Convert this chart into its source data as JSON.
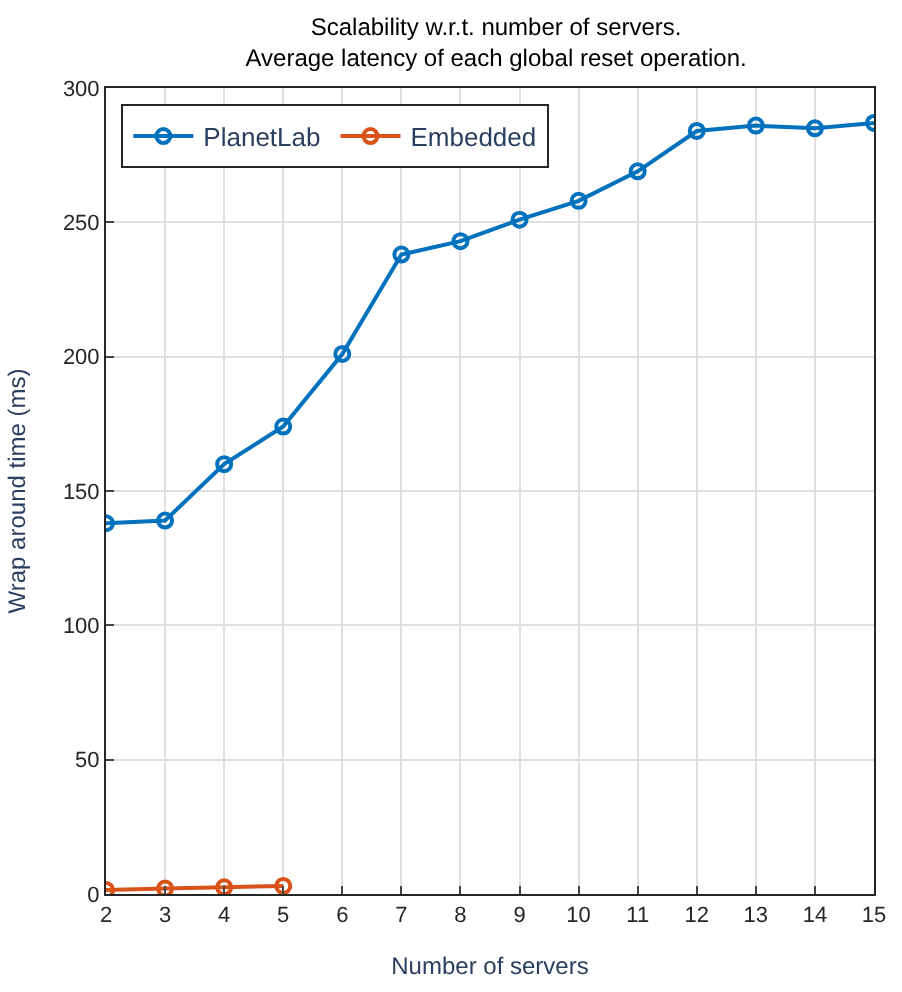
{
  "chart_data": {
    "type": "line",
    "title": "Scalability w.r.t. number of servers.\nAverage latency of each global reset operation.",
    "xlabel": "Number of servers",
    "ylabel": "Wrap around time (ms)",
    "xlim": [
      2,
      15
    ],
    "xticks": [
      2,
      3,
      4,
      5,
      6,
      7,
      8,
      9,
      10,
      11,
      12,
      13,
      14,
      15
    ],
    "ylim": [
      0,
      300
    ],
    "yticks": [
      0,
      50,
      100,
      150,
      200,
      250,
      300
    ],
    "grid": true,
    "legend": "top left",
    "marker": "circle",
    "series": [
      {
        "name": "PlanetLab",
        "color": "#0072bd",
        "x": [
          2,
          3,
          4,
          5,
          6,
          7,
          8,
          9,
          10,
          11,
          12,
          13,
          14,
          15
        ],
        "values": [
          138,
          139,
          160,
          174,
          201,
          238,
          243,
          251,
          258,
          269,
          284,
          286,
          285,
          287
        ]
      },
      {
        "name": "Embedded",
        "color": "#d95319",
        "x": [
          2,
          3,
          4,
          5
        ],
        "values": [
          1.5,
          2,
          2.5,
          3
        ]
      }
    ]
  }
}
